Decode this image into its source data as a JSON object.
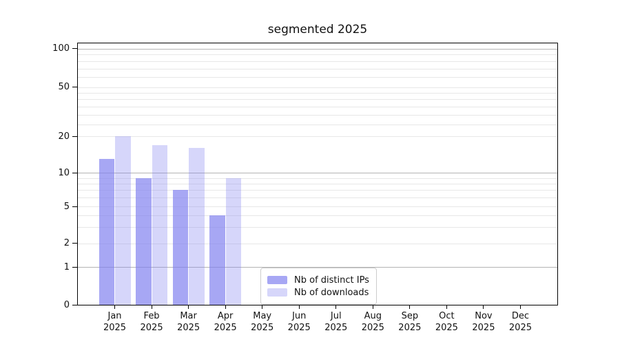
{
  "chart_data": {
    "type": "bar",
    "title": "segmented 2025",
    "categories": [
      "Jan",
      "Feb",
      "Mar",
      "Apr",
      "May",
      "Jun",
      "Jul",
      "Aug",
      "Sep",
      "Oct",
      "Nov",
      "Dec"
    ],
    "year_label": "2025",
    "series": [
      {
        "name": "Nb of distinct IPs",
        "color": "rgba(130,130,240,0.70)",
        "values": [
          13,
          9,
          7,
          4,
          null,
          null,
          null,
          null,
          null,
          null,
          null,
          null
        ]
      },
      {
        "name": "Nb of downloads",
        "color": "rgba(130,130,240,0.33)",
        "values": [
          20,
          17,
          16,
          9,
          null,
          null,
          null,
          null,
          null,
          null,
          null,
          null
        ]
      }
    ],
    "y_ticks": [
      100,
      50,
      20,
      10,
      5,
      2,
      1,
      0
    ],
    "y_axis_scale": "log-like with ticks 0,1,2,5,10,20,50,100",
    "ylim": [
      0,
      100
    ],
    "xlabel": "",
    "ylabel": "",
    "grid": true,
    "legend_position": "inside plot, lower center"
  }
}
